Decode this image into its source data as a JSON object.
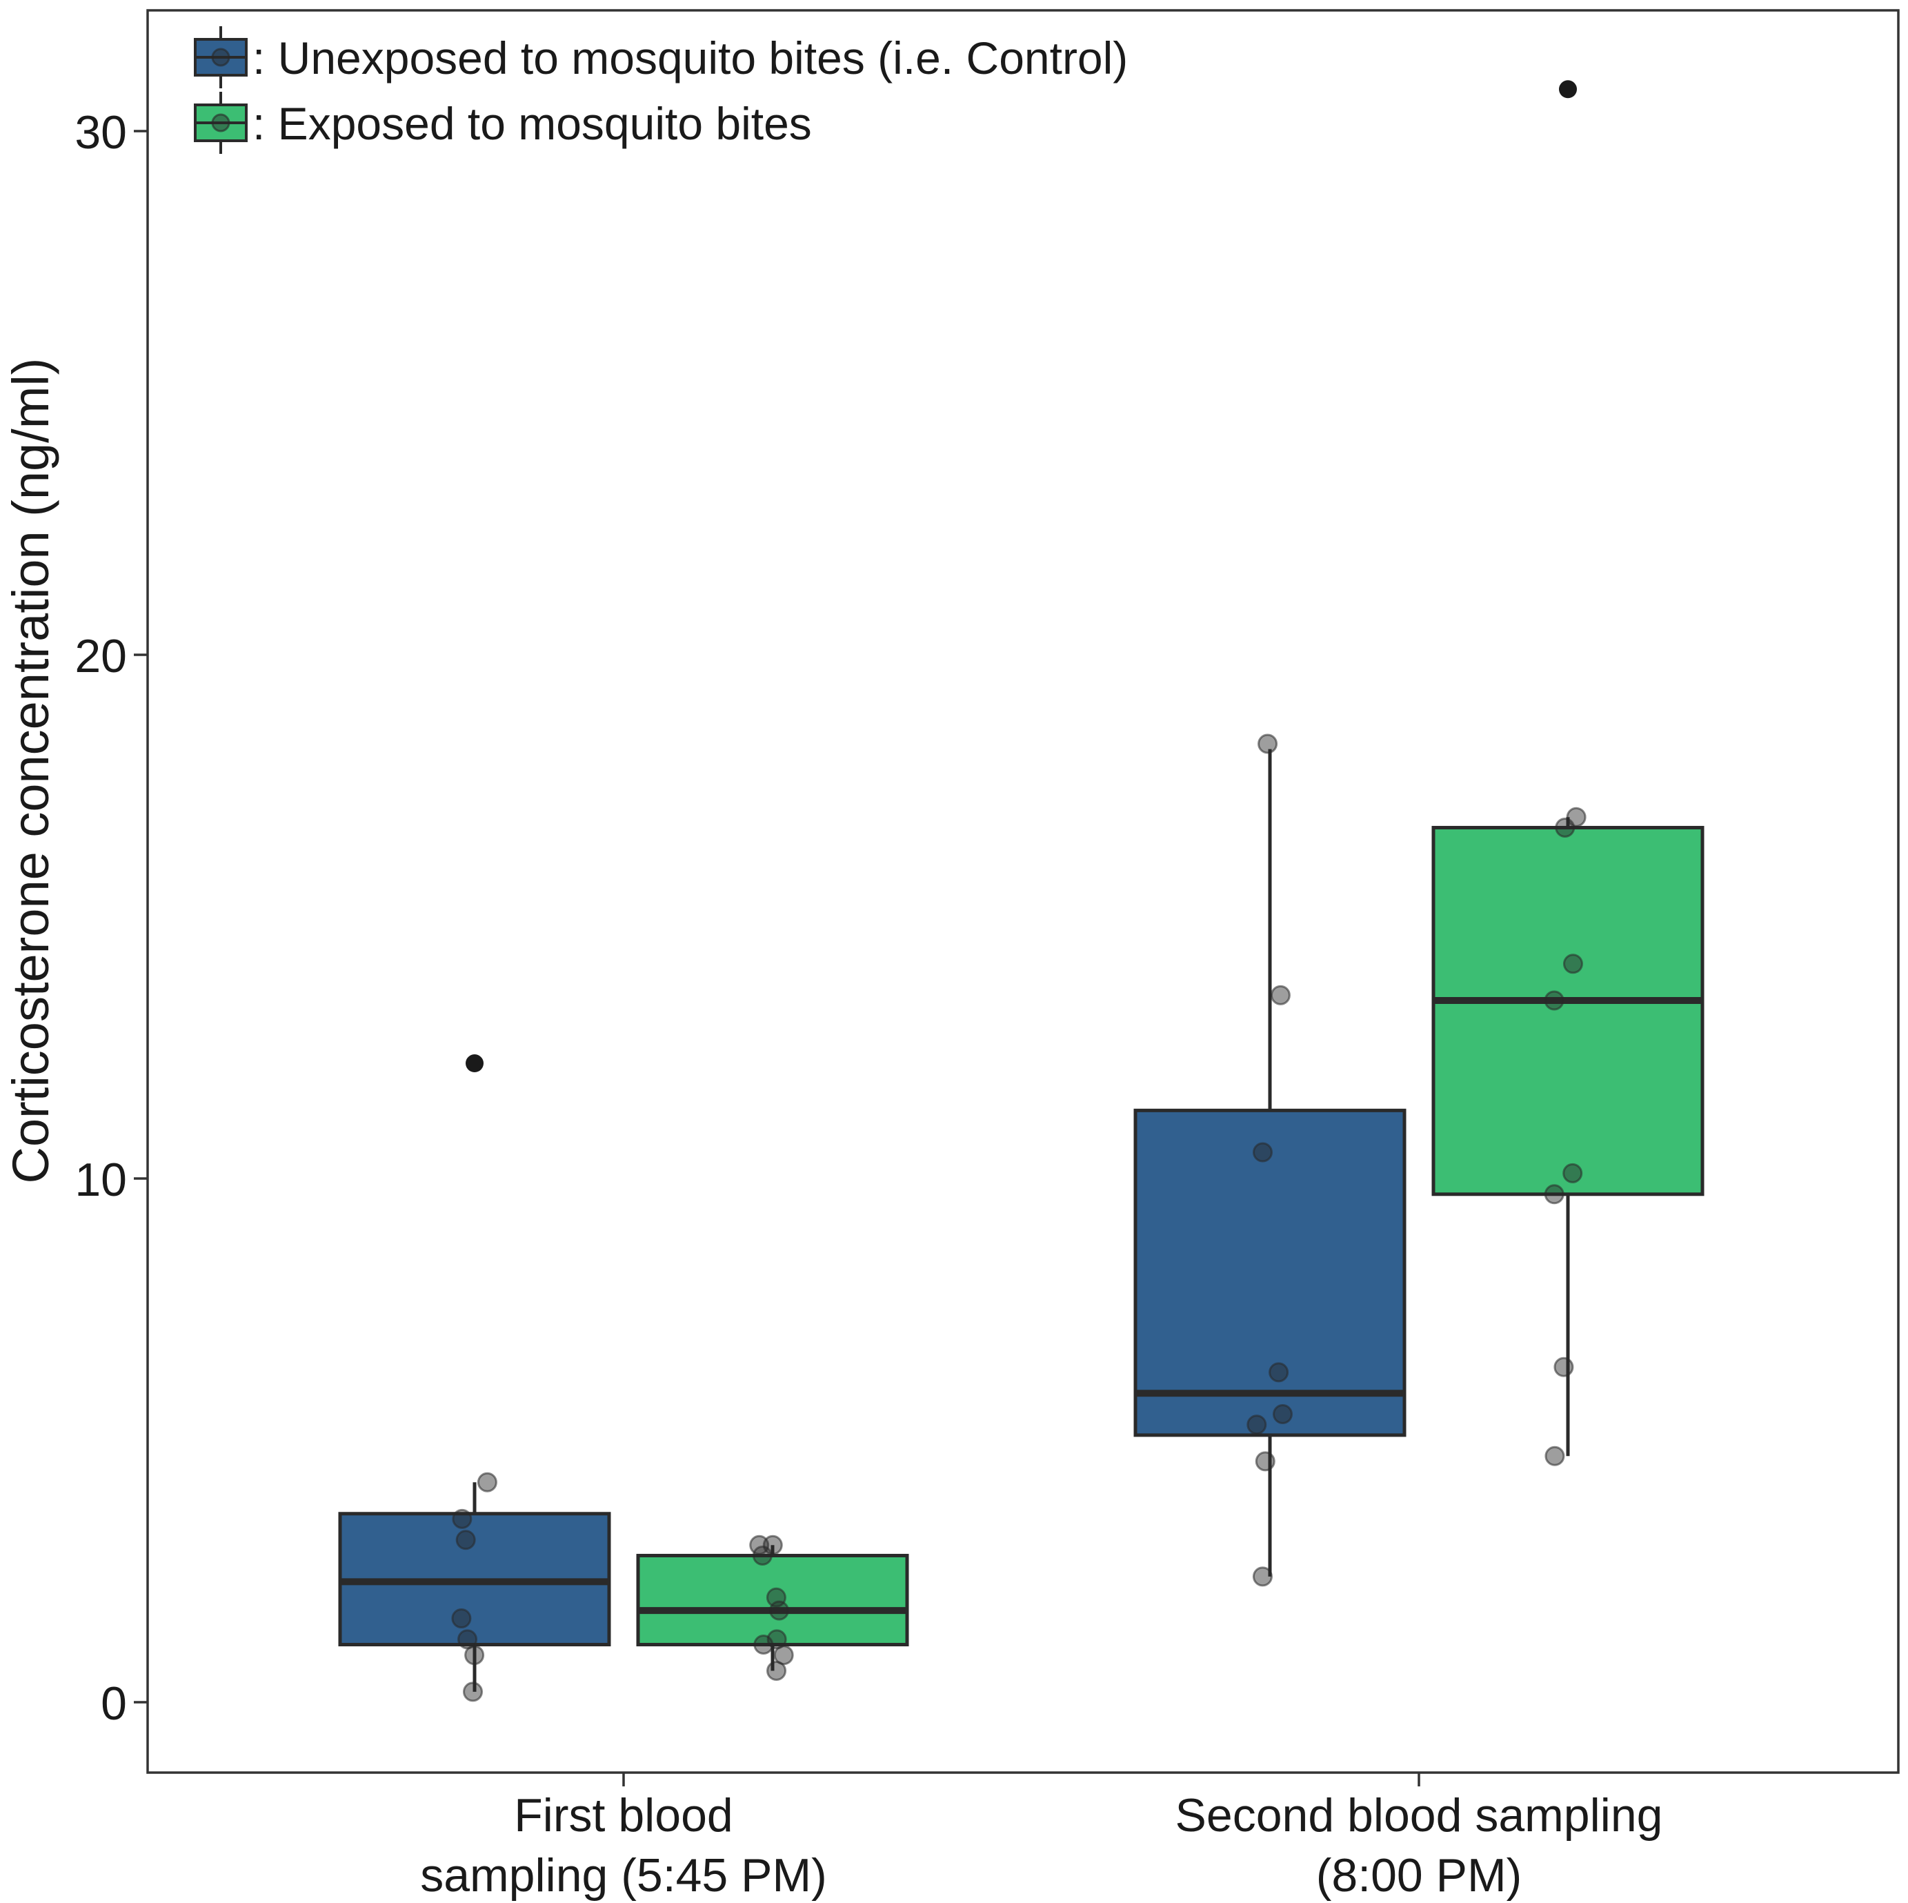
{
  "chart_data": {
    "type": "boxplot",
    "title": "",
    "xlabel": "",
    "ylabel": "Corticosterone concentration (ng/ml)",
    "ylim": [
      -1.3,
      32.3
    ],
    "yticks": [
      0,
      10,
      20,
      30
    ],
    "grid": false,
    "legend_position": "top-left",
    "colors": {
      "control": "#31608f",
      "exposed": "#3cbe73",
      "outline": "#2a2a2a",
      "point": "#1a1a1a"
    },
    "categories": [
      {
        "lines": [
          "First blood",
          "sampling (5:45 PM)"
        ]
      },
      {
        "lines": [
          "Second blood sampling",
          "(8:00 PM)"
        ]
      }
    ],
    "series": [
      {
        "name": ": Unexposed to mosquito bites (i.e. Control)",
        "color": "#31608f",
        "boxes": [
          {
            "category": 0,
            "q1": 1.1,
            "median": 2.3,
            "q3": 3.6,
            "whisker_low": 0.2,
            "whisker_high": 4.2,
            "outliers": [
              12.2
            ],
            "points": [
              0.2,
              0.9,
              1.2,
              1.6,
              3.1,
              3.5,
              4.2
            ]
          },
          {
            "category": 1,
            "q1": 5.1,
            "median": 5.9,
            "q3": 11.3,
            "whisker_low": 2.4,
            "whisker_high": 18.2,
            "outliers": [],
            "points": [
              2.4,
              4.6,
              5.3,
              5.5,
              6.3,
              10.5,
              13.5,
              18.3
            ]
          }
        ]
      },
      {
        "name": ": Exposed to mosquito bites",
        "color": "#3cbe73",
        "boxes": [
          {
            "category": 0,
            "q1": 1.1,
            "median": 1.75,
            "q3": 2.8,
            "whisker_low": 0.6,
            "whisker_high": 3.0,
            "outliers": [],
            "points": [
              0.6,
              0.9,
              1.2,
              1.1,
              1.75,
              2.0,
              2.8,
              3.0,
              3.0
            ]
          },
          {
            "category": 1,
            "q1": 9.7,
            "median": 13.4,
            "q3": 16.7,
            "whisker_low": 4.7,
            "whisker_high": 16.9,
            "outliers": [
              30.8
            ],
            "points": [
              4.7,
              6.4,
              9.7,
              10.1,
              13.4,
              14.1,
              16.7,
              16.9
            ]
          }
        ]
      }
    ]
  }
}
